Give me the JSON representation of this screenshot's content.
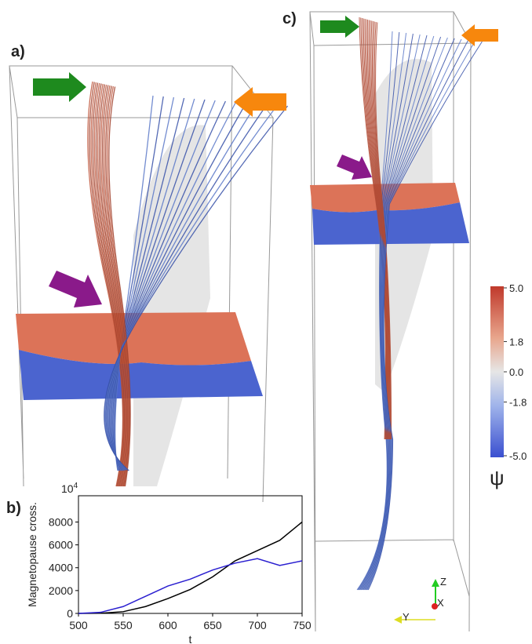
{
  "panels": {
    "a": "a)",
    "b": "b)",
    "c": "c)"
  },
  "colorbar": {
    "label": "ψ",
    "ticks": [
      {
        "value": 5,
        "label": "5.0"
      },
      {
        "value": 1.8,
        "label": "1.8"
      },
      {
        "value": 0,
        "label": "0.0"
      },
      {
        "value": -1.8,
        "label": "-1.8"
      },
      {
        "value": -5,
        "label": "-5.0"
      }
    ]
  },
  "triad": {
    "z": "Z",
    "x": "X",
    "y": "Y"
  },
  "chart_data": {
    "type": "line",
    "x_label": "t",
    "y_label": "Magnetopause cross.",
    "y_multiplier": {
      "base": "10",
      "exponent": "4"
    },
    "x": [
      500,
      525,
      550,
      575,
      600,
      625,
      650,
      675,
      700,
      725,
      750
    ],
    "series": [
      {
        "color": "#000000",
        "values": [
          0,
          20,
          150,
          600,
          1300,
          2100,
          3200,
          4600,
          5500,
          6400,
          8000
        ]
      },
      {
        "color": "#2a1fd0",
        "values": [
          0,
          100,
          600,
          1500,
          2400,
          3000,
          3800,
          4400,
          4800,
          4200,
          4600
        ]
      }
    ],
    "xlim": [
      500,
      750
    ],
    "xticks": [
      500,
      550,
      600,
      650,
      700,
      750
    ],
    "ylim": [
      0,
      10300
    ],
    "yticks": [
      0,
      2000,
      4000,
      6000,
      8000
    ]
  }
}
